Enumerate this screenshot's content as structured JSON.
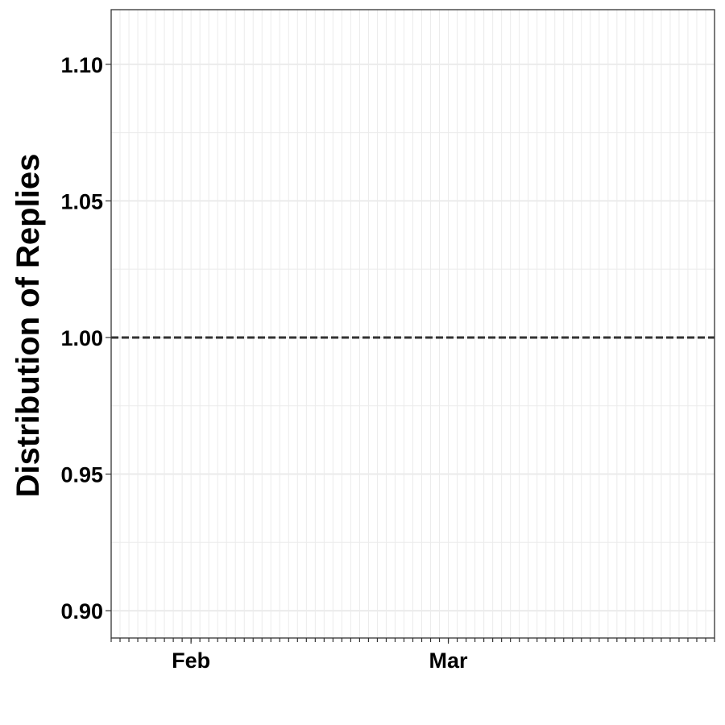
{
  "chart_data": {
    "type": "line",
    "title": "",
    "xlabel": "",
    "ylabel": "Distribution of Replies",
    "x_axis": {
      "type": "date",
      "range": [
        "2020-01-23",
        "2020-03-31"
      ],
      "major_ticks": [
        {
          "label": "Feb",
          "value": "2020-02-01"
        },
        {
          "label": "Mar",
          "value": "2020-03-01"
        }
      ],
      "minor_ticks": "daily"
    },
    "y_axis": {
      "range": [
        0.89,
        1.12
      ],
      "ticks": [
        {
          "label": "0.90",
          "value": 0.9
        },
        {
          "label": "0.95",
          "value": 0.95
        },
        {
          "label": "1.00",
          "value": 1.0
        },
        {
          "label": "1.05",
          "value": 1.05
        },
        {
          "label": "1.10",
          "value": 1.1
        }
      ]
    },
    "reference_line": {
      "y": 1.0,
      "style": "dashed",
      "color": "#333333"
    },
    "series": [],
    "grid": true,
    "colors": {
      "grid": "#ebebeb",
      "panel_border": "#333333",
      "reference_line": "#333333"
    }
  }
}
